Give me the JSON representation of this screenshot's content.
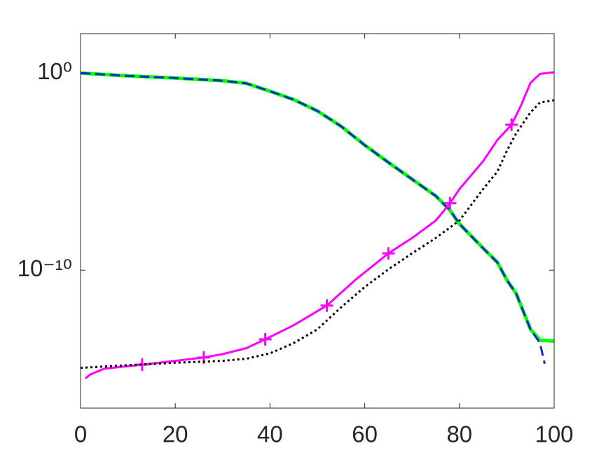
{
  "chart_data": {
    "type": "line",
    "log_y": true,
    "xlim": [
      0,
      100
    ],
    "xticks": [
      0,
      20,
      40,
      60,
      80,
      100
    ],
    "ylim": [
      1e-17,
      100
    ],
    "yticks": [
      {
        "value": 1,
        "label": "10⁰"
      },
      {
        "value": 1e-10,
        "label": "10⁻¹⁰"
      }
    ],
    "series": [
      {
        "color": "#00ff00",
        "style": "solid",
        "width": 5,
        "x": [
          0,
          10,
          20,
          30,
          35,
          40,
          45,
          50,
          55,
          60,
          65,
          70,
          75,
          78,
          80,
          85,
          88,
          90,
          92,
          95,
          97,
          100
        ],
        "values": [
          1,
          0.72,
          0.56,
          0.41,
          0.3,
          0.12,
          0.045,
          0.012,
          0.002,
          0.00022,
          2.9e-05,
          4.1e-06,
          5.8e-07,
          1.1e-07,
          2.2e-08,
          1.3e-09,
          2.5e-10,
          3.2e-11,
          6.3e-12,
          1e-13,
          2.8e-14,
          2.5e-14
        ]
      },
      {
        "color": "#0a2bc8",
        "style": "dashed",
        "width": 3,
        "x": [
          0,
          10,
          20,
          30,
          35,
          40,
          45,
          50,
          55,
          60,
          65,
          70,
          75,
          78,
          80,
          85,
          88,
          90,
          92,
          95,
          97,
          98
        ],
        "values": [
          1,
          0.72,
          0.56,
          0.41,
          0.3,
          0.12,
          0.045,
          0.012,
          0.002,
          0.00022,
          2.9e-05,
          4.1e-06,
          5.8e-07,
          1.1e-07,
          2.2e-08,
          1.3e-09,
          2.5e-10,
          3.2e-11,
          6.3e-12,
          1e-13,
          2e-14,
          1.8e-15
        ]
      },
      {
        "color": "#ff00ff",
        "style": "solid",
        "width": 3,
        "marker": "+",
        "markevery": 13,
        "x": [
          1,
          2,
          5,
          13,
          20,
          26,
          30,
          35,
          39,
          45,
          52,
          58,
          65,
          70,
          75,
          78,
          80,
          85,
          88,
          91,
          93,
          95,
          97,
          100
        ],
        "values": [
          3.2e-16,
          5e-16,
          1e-15,
          1.6e-15,
          2.5e-15,
          3.7e-15,
          5.5e-15,
          1.1e-14,
          3.1e-14,
          1.6e-13,
          1.6e-12,
          3.2e-11,
          7.1e-10,
          4.3e-09,
          3.3e-08,
          2.5e-07,
          1.3e-06,
          3.4e-05,
          0.0004,
          0.0024,
          0.023,
          0.32,
          0.91,
          1.1
        ]
      },
      {
        "color": "#000000",
        "style": "dotted",
        "width": 3,
        "x": [
          0,
          10,
          20,
          30,
          35,
          40,
          45,
          50,
          55,
          60,
          65,
          70,
          75,
          80,
          85,
          88,
          90,
          92,
          95,
          97,
          100
        ],
        "values": [
          1.1e-15,
          1.5e-15,
          2e-15,
          2.5e-15,
          3.2e-15,
          6e-15,
          2e-14,
          1e-13,
          1.3e-12,
          1.4e-11,
          1.1e-10,
          7.1e-10,
          4.3e-09,
          3.3e-08,
          1.3e-06,
          1e-05,
          0.00011,
          0.00089,
          0.01,
          0.032,
          0.042
        ]
      }
    ]
  }
}
